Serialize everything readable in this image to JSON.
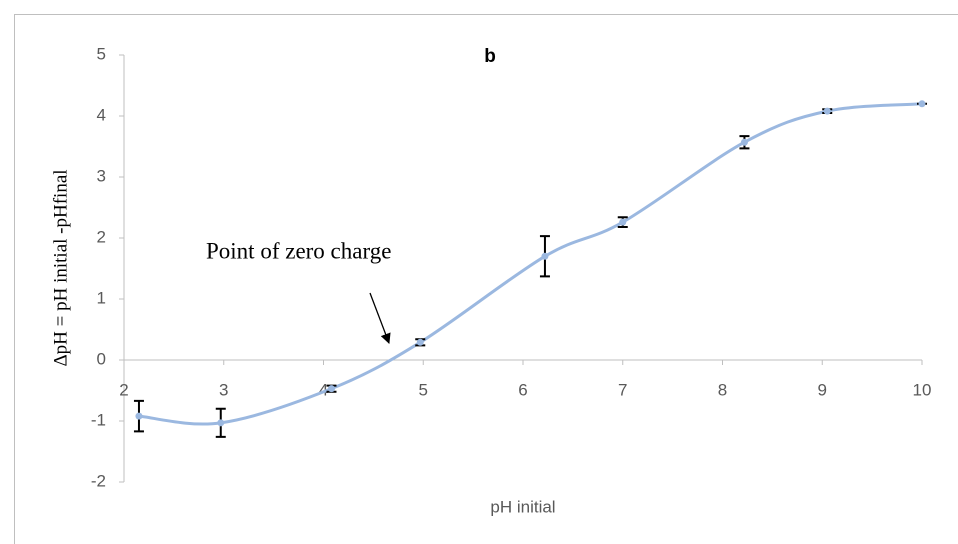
{
  "chart_data": {
    "type": "scatter",
    "title": "b",
    "x_label": "pH initial",
    "y_label": "ΔpH = pH initial -pHfinal",
    "annotation": "Point of zero charge",
    "x": [
      2.15,
      2.97,
      4.08,
      4.97,
      6.22,
      7.0,
      8.22,
      9.05,
      10
    ],
    "y": [
      -0.92,
      -1.03,
      -0.47,
      0.29,
      1.7,
      2.26,
      3.57,
      4.08,
      4.2
    ],
    "error": [
      0.25,
      0.23,
      0.05,
      0.05,
      0.33,
      0.08,
      0.1,
      0.03,
      0
    ],
    "color": "#9bb8e0",
    "smooth": true,
    "grid": false,
    "xlim": [
      2,
      10
    ],
    "ylim": [
      -2,
      5
    ],
    "xticks": [
      2,
      3,
      4,
      5,
      6,
      7,
      8,
      9,
      10
    ],
    "yticks": [
      -2,
      -1,
      0,
      1,
      2,
      3,
      4,
      5
    ]
  }
}
